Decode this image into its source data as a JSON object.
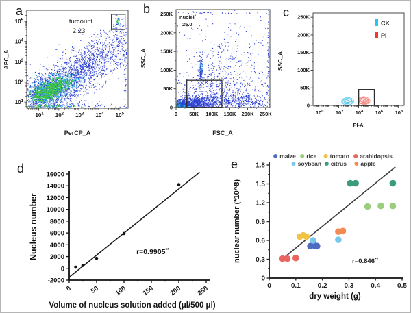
{
  "figure": {
    "background": "#ffffff",
    "border_color": "#b5b5b5"
  },
  "panels": [
    {
      "letter": "a"
    },
    {
      "letter": "b"
    },
    {
      "letter": "c"
    },
    {
      "letter": "d"
    },
    {
      "letter": "e"
    }
  ],
  "palette": {
    "flow_blue": "#2a3ed2",
    "flow_cyan": "#22a7e2",
    "flow_green": "#3bc53a",
    "flow_yellow": "#ead31d",
    "flow_orange": "#f28c1a",
    "flow_red": "#e43024"
  },
  "chart_data": [
    {
      "panel": "a",
      "type": "scatter",
      "subtype": "flow-density",
      "xlabel": "PerCP_A",
      "ylabel": "APC_A",
      "xscale": "log",
      "yscale": "log",
      "xlim": [
        0.4,
        5.45
      ],
      "ylim": [
        0.7,
        5.55
      ],
      "xticks": [
        1,
        2,
        3,
        4,
        5
      ],
      "yticks": [
        1,
        2,
        3,
        4,
        5
      ],
      "annotation": {
        "lines": [
          "turcount",
          "2.23"
        ]
      },
      "gate": {
        "x0": 4.62,
        "x1": 5.3,
        "y0": 4.6,
        "y1": 5.35
      },
      "clusters": [
        {
          "cx": 1.1,
          "cy": 1.35,
          "sx": 0.5,
          "sy": 0.42,
          "n": 650,
          "color": "#2a3ed2"
        },
        {
          "cx": 1.9,
          "cy": 1.8,
          "sx": 0.6,
          "sy": 0.48,
          "n": 650,
          "color": "#2a3ed2"
        },
        {
          "cx": 2.7,
          "cy": 2.3,
          "sx": 0.6,
          "sy": 0.5,
          "n": 520,
          "color": "#2a3ed2"
        },
        {
          "cx": 3.5,
          "cy": 2.9,
          "sx": 0.55,
          "sy": 0.5,
          "n": 400,
          "color": "#2a3ed2"
        },
        {
          "cx": 4.3,
          "cy": 3.5,
          "sx": 0.5,
          "sy": 0.52,
          "n": 280,
          "color": "#2a3ed2"
        },
        {
          "cx": 5.0,
          "cy": 4.0,
          "sx": 0.25,
          "sy": 0.6,
          "n": 150,
          "color": "#2a3ed2"
        },
        {
          "cx": 5.28,
          "cy": 2.6,
          "sx": 0.04,
          "sy": 1.3,
          "n": 60,
          "color": "#2a3ed2"
        },
        {
          "cx": 2.0,
          "cy": 0.84,
          "sx": 1.4,
          "sy": 0.06,
          "n": 100,
          "color": "#2a3ed2"
        },
        {
          "cx": 1.2,
          "cy": 1.42,
          "sx": 0.38,
          "sy": 0.28,
          "n": 350,
          "color": "#22a7e2"
        },
        {
          "cx": 1.8,
          "cy": 1.72,
          "sx": 0.42,
          "sy": 0.28,
          "n": 300,
          "color": "#22a7e2"
        },
        {
          "cx": 2.4,
          "cy": 2.05,
          "sx": 0.4,
          "sy": 0.26,
          "n": 180,
          "color": "#22a7e2"
        },
        {
          "cx": 1.5,
          "cy": 0.82,
          "sx": 1.0,
          "sy": 0.04,
          "n": 60,
          "color": "#22a7e2"
        },
        {
          "cx": 1.15,
          "cy": 1.38,
          "sx": 0.28,
          "sy": 0.2,
          "n": 330,
          "color": "#3bc53a"
        },
        {
          "cx": 1.65,
          "cy": 1.68,
          "sx": 0.3,
          "sy": 0.19,
          "n": 280,
          "color": "#3bc53a"
        },
        {
          "cx": 2.15,
          "cy": 1.95,
          "sx": 0.28,
          "sy": 0.17,
          "n": 160,
          "color": "#3bc53a"
        },
        {
          "cx": 1.2,
          "cy": 0.8,
          "sx": 0.7,
          "sy": 0.03,
          "n": 50,
          "color": "#3bc53a"
        },
        {
          "cx": 1.0,
          "cy": 0.79,
          "sx": 0.35,
          "sy": 0.02,
          "n": 15,
          "color": "#ead31d"
        },
        {
          "cx": 4.94,
          "cy": 5.02,
          "sx": 0.06,
          "sy": 0.09,
          "n": 22,
          "color": "#3bc53a"
        },
        {
          "cx": 4.94,
          "cy": 5.02,
          "sx": 0.1,
          "sy": 0.13,
          "n": 14,
          "color": "#22a7e2"
        },
        {
          "cx": 4.95,
          "cy": 5.0,
          "sx": 0.14,
          "sy": 0.18,
          "n": 14,
          "color": "#2a3ed2"
        }
      ]
    },
    {
      "panel": "b",
      "type": "scatter",
      "subtype": "flow-density",
      "xlabel": "FSC_A",
      "ylabel": "SSC_A",
      "xscale": "linear",
      "yscale": "linear",
      "unit": "K",
      "xlim": [
        0,
        262
      ],
      "ylim": [
        0,
        262
      ],
      "xticks": [
        0,
        50,
        100,
        150,
        200,
        250
      ],
      "yticks": [
        0,
        50,
        100,
        150,
        200,
        250
      ],
      "annotation": {
        "lines": [
          "nuclei",
          "25.0"
        ]
      },
      "gate": {
        "x0": 30,
        "x1": 128,
        "y0": 0.5,
        "y1": 73
      },
      "clusters": [
        {
          "cx": 3.5,
          "cy": 1.8,
          "sx": 2.2,
          "sy": 1.5,
          "n": 150,
          "color": "#e43024"
        },
        {
          "cx": 6,
          "cy": 2.8,
          "sx": 3.2,
          "sy": 2,
          "n": 170,
          "color": "#f28c1a"
        },
        {
          "cx": 9,
          "cy": 4,
          "sx": 4.5,
          "sy": 2.6,
          "n": 210,
          "color": "#ead31d"
        },
        {
          "cx": 13,
          "cy": 5.5,
          "sx": 6,
          "sy": 3.4,
          "n": 300,
          "color": "#3bc53a"
        },
        {
          "cx": 18,
          "cy": 7.5,
          "sx": 8.5,
          "sy": 4.6,
          "n": 300,
          "color": "#22a7e2"
        },
        {
          "cx": 45,
          "cy": 12,
          "sx": 28,
          "sy": 9,
          "n": 800,
          "color": "#2a3ed2"
        },
        {
          "cx": 110,
          "cy": 16,
          "sx": 55,
          "sy": 11,
          "n": 550,
          "color": "#2a3ed2"
        },
        {
          "cx": 185,
          "cy": 20,
          "sx": 45,
          "sy": 13,
          "n": 250,
          "color": "#2a3ed2"
        },
        {
          "cx": 110,
          "cy": 55,
          "sx": 65,
          "sy": 25,
          "n": 350,
          "color": "#2a3ed2"
        },
        {
          "cx": 140,
          "cy": 120,
          "sx": 70,
          "sy": 60,
          "n": 380,
          "color": "#2a3ed2"
        },
        {
          "cx": 69,
          "cy": 97,
          "sx": 2.4,
          "sy": 19,
          "n": 150,
          "color": "#2a3ed2"
        },
        {
          "cx": 69,
          "cy": 108,
          "sx": 1.8,
          "sy": 8,
          "n": 40,
          "color": "#22a7e2"
        },
        {
          "cx": 257,
          "cy": 130,
          "sx": 1.5,
          "sy": 80,
          "n": 70,
          "color": "#2a3ed2"
        },
        {
          "cx": 120,
          "cy": 254,
          "sx": 70,
          "sy": 2,
          "n": 35,
          "color": "#2a3ed2"
        }
      ]
    },
    {
      "panel": "c",
      "type": "contour",
      "subtype": "flow-contour",
      "xlabel": "PI-A",
      "ylabel": "SSC_A",
      "xscale": "log",
      "yscale": "linear",
      "xlim": [
        -0.6,
        8.6
      ],
      "ylim": [
        0,
        262
      ],
      "xticks": [
        0,
        2,
        4,
        6,
        8
      ],
      "yticks": [
        0,
        50,
        100,
        150,
        200,
        250
      ],
      "legend": [
        {
          "label": "CK",
          "color": "#27c4f4"
        },
        {
          "label": "PI",
          "color": "#ee3a31"
        }
      ],
      "gate": {
        "x0": 4.0,
        "x1": 5.6,
        "y0": 0,
        "y1": 45
      },
      "contours": [
        {
          "cx": 2.9,
          "cy": 12,
          "rx_dec": 0.62,
          "ry_k": 10.5,
          "levels": 7,
          "color": "#5bc9f0"
        },
        {
          "cx": 4.55,
          "cy": 14,
          "rx_dec": 0.6,
          "ry_k": 11,
          "levels": 7,
          "color": "#f2857d"
        }
      ]
    },
    {
      "panel": "d",
      "type": "scatter",
      "xlabel": "Volume of nucleus solution added (μl/500 μl)",
      "ylabel": "Nucleus number",
      "xlim": [
        0,
        250
      ],
      "ylim": [
        -2000,
        16000
      ],
      "xticks": [
        0,
        50,
        100,
        150,
        200,
        250
      ],
      "yticks": [
        -2000,
        0,
        2000,
        4000,
        6000,
        8000,
        10000,
        12000,
        14000,
        16000
      ],
      "points": [
        [
          12,
          200
        ],
        [
          25,
          500
        ],
        [
          50,
          1700
        ],
        [
          100,
          5900
        ],
        [
          200,
          14200
        ]
      ],
      "trendline": {
        "x1": 0,
        "y1": -1500,
        "x2": 238,
        "y2": 16300
      },
      "point_color": "#111111",
      "line_color": "#1c1c1c",
      "r_label": "r=0.9905",
      "r_sup": "**"
    },
    {
      "panel": "e",
      "type": "scatter",
      "xlabel": "dry weight (g)",
      "ylabel": "nuclear number (*10^8)",
      "xlim": [
        0,
        0.5
      ],
      "ylim": [
        0,
        1.8
      ],
      "xticks": [
        0,
        0.1,
        0.2,
        0.3,
        0.4,
        0.5
      ],
      "yticks": [
        0,
        0.3,
        0.6,
        0.9,
        1.2,
        1.5,
        1.8
      ],
      "series": [
        {
          "name": "maize",
          "color": "#4f6bbf",
          "points": [
            [
              0.155,
              0.51
            ],
            [
              0.17,
              0.52
            ],
            [
              0.18,
              0.51
            ]
          ]
        },
        {
          "name": "rice",
          "color": "#9acd7e",
          "points": [
            [
              0.37,
              1.14
            ],
            [
              0.42,
              1.15
            ],
            [
              0.465,
              1.15
            ]
          ]
        },
        {
          "name": "tomato",
          "color": "#f1c244",
          "points": [
            [
              0.115,
              0.66
            ],
            [
              0.128,
              0.68
            ],
            [
              0.14,
              0.66
            ]
          ]
        },
        {
          "name": "arabidopsis",
          "color": "#e9655f",
          "points": [
            [
              0.05,
              0.31
            ],
            [
              0.068,
              0.31
            ],
            [
              0.1,
              0.32
            ]
          ]
        },
        {
          "name": "soybean",
          "color": "#77c8ec",
          "points": [
            [
              0.165,
              0.6
            ],
            [
              0.26,
              0.61
            ]
          ]
        },
        {
          "name": "citrus",
          "color": "#3b9c7a",
          "points": [
            [
              0.305,
              1.51
            ],
            [
              0.325,
              1.51
            ],
            [
              0.465,
              1.51
            ]
          ]
        },
        {
          "name": "apple",
          "color": "#f28a55",
          "points": [
            [
              0.26,
              0.74
            ],
            [
              0.277,
              0.75
            ]
          ]
        }
      ],
      "legend_rows": [
        [
          "maize",
          "rice",
          "tomato",
          "arabidopsis"
        ],
        [
          "soybean",
          "citrus",
          "apple"
        ]
      ],
      "trendline": {
        "x1": 0.048,
        "y1": 0.3,
        "x2": 0.475,
        "y2": 1.77
      },
      "line_color": "#3a3a3a",
      "r_label": "r=0.846",
      "r_sup": "**"
    }
  ]
}
